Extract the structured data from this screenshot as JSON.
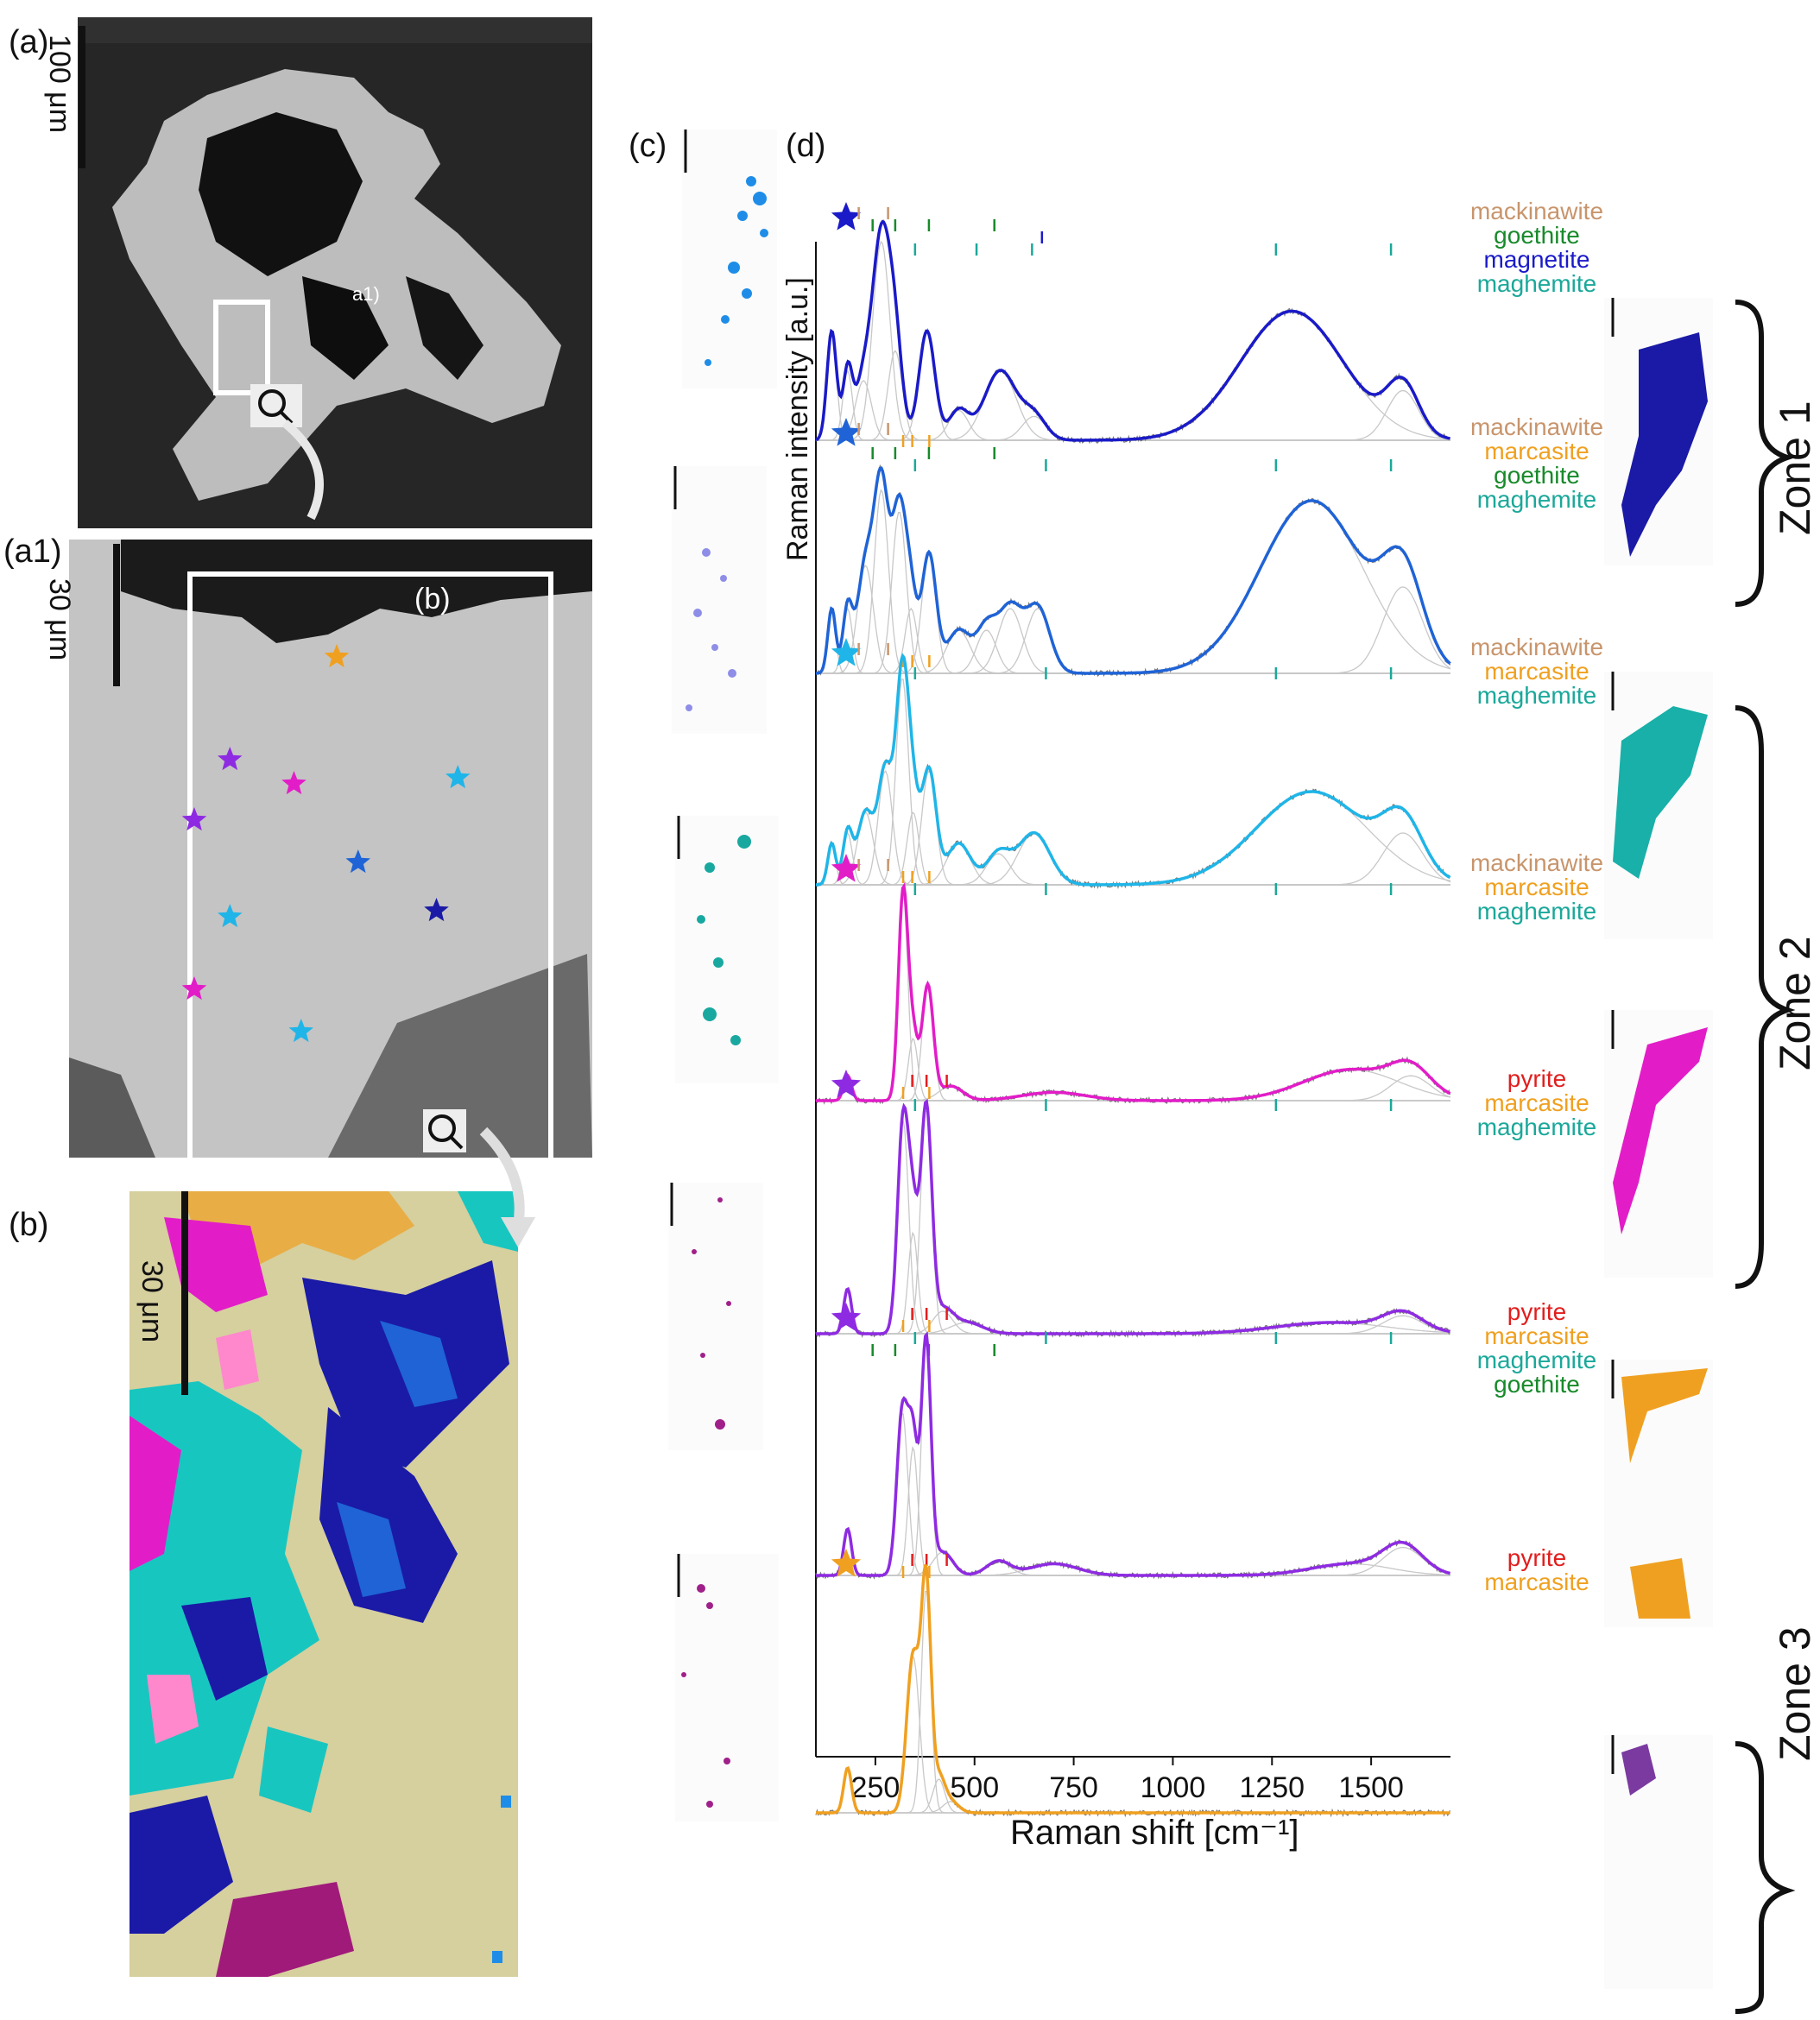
{
  "panel_labels": {
    "a": "(a)",
    "a1": "(a1)",
    "b": "(b)",
    "c": "(c)",
    "d": "(d)"
  },
  "inset_labels": {
    "a1_box": "a1)",
    "b_box": "(b)"
  },
  "scale_bars": {
    "a": "100 μm",
    "a1": "30 μm",
    "b": "30 μm"
  },
  "zones": {
    "zone1": "Zone 1",
    "zone2": "Zone 2",
    "zone3": "Zone 3"
  },
  "colors": {
    "blue_dark": "#1a1aa6",
    "blue": "#1f63d6",
    "cyan": "#1fb5e8",
    "magenta": "#e21dc8",
    "purple": "#8e2be2",
    "orange": "#f0a020",
    "teal": "#18b0a0",
    "mackinawite": "#c8956c",
    "marcasite": "#f0a020",
    "goethite": "#178a2a",
    "magnetite": "#1a1ac8",
    "maghemite": "#1aa89a",
    "pyrite": "#e21d1d",
    "fit_component": "#c8c8c8",
    "raw": "#7a7a7a"
  },
  "chart_data": {
    "type": "line",
    "xlabel": "Raman shift [cm⁻¹]",
    "ylabel": "Raman intensity [a.u.]",
    "xlim": [
      100,
      1700
    ],
    "xticks": [
      250,
      500,
      750,
      1000,
      1250,
      1500
    ],
    "xtick_labels": [
      "250",
      "500",
      "750",
      "1000",
      "1250",
      "1500"
    ],
    "grid": false,
    "series": [
      {
        "star_color": "#1a1ac8",
        "line_color": "#1a1ac8",
        "minerals": [
          {
            "name": "mackinawite",
            "color": "#c8956c",
            "positions": [
              208,
              282
            ]
          },
          {
            "name": "goethite",
            "color": "#178a2a",
            "positions": [
              243,
              300,
              385,
              550
            ]
          },
          {
            "name": "magnetite",
            "color": "#1a1ac8",
            "positions": [
              670
            ]
          },
          {
            "name": "maghemite",
            "color": "#1aa89a",
            "positions": [
              350,
              505,
              645,
              1260,
              1550
            ]
          }
        ],
        "peaks": [
          [
            140,
            0.55,
            12
          ],
          [
            180,
            0.35,
            12
          ],
          [
            220,
            0.3,
            20
          ],
          [
            265,
            1.0,
            22
          ],
          [
            300,
            0.45,
            18
          ],
          [
            380,
            0.55,
            20
          ],
          [
            460,
            0.15,
            25
          ],
          [
            565,
            0.35,
            40
          ],
          [
            650,
            0.12,
            30
          ],
          [
            1300,
            0.65,
            130
          ],
          [
            1580,
            0.25,
            40
          ]
        ]
      },
      {
        "star_color": "#1f63d6",
        "line_color": "#1f63d6",
        "minerals": [
          {
            "name": "mackinawite",
            "color": "#c8956c",
            "positions": [
              208,
              282
            ]
          },
          {
            "name": "marcasite",
            "color": "#f0a020",
            "positions": [
              320,
              343,
              386
            ]
          },
          {
            "name": "goethite",
            "color": "#178a2a",
            "positions": [
              243,
              300,
              385,
              550
            ]
          },
          {
            "name": "maghemite",
            "color": "#1aa89a",
            "positions": [
              350,
              680,
              1260,
              1550
            ]
          }
        ],
        "peaks": [
          [
            140,
            0.3,
            10
          ],
          [
            180,
            0.3,
            12
          ],
          [
            225,
            0.5,
            20
          ],
          [
            265,
            0.85,
            18
          ],
          [
            310,
            0.75,
            18
          ],
          [
            340,
            0.3,
            15
          ],
          [
            385,
            0.55,
            18
          ],
          [
            460,
            0.2,
            30
          ],
          [
            530,
            0.2,
            25
          ],
          [
            590,
            0.3,
            30
          ],
          [
            660,
            0.3,
            30
          ],
          [
            1350,
            0.8,
            130
          ],
          [
            1580,
            0.4,
            50
          ]
        ]
      },
      {
        "star_color": "#1fb5e8",
        "line_color": "#1fb5e8",
        "minerals": [
          {
            "name": "mackinawite",
            "color": "#c8956c",
            "positions": [
              208,
              282
            ]
          },
          {
            "name": "marcasite",
            "color": "#f0a020",
            "positions": [
              320,
              343,
              386
            ]
          },
          {
            "name": "maghemite",
            "color": "#1aa89a",
            "positions": [
              350,
              680,
              1260,
              1550
            ]
          }
        ],
        "peaks": [
          [
            140,
            0.2,
            10
          ],
          [
            180,
            0.25,
            12
          ],
          [
            225,
            0.35,
            20
          ],
          [
            275,
            0.55,
            18
          ],
          [
            318,
            1.0,
            16
          ],
          [
            345,
            0.35,
            15
          ],
          [
            385,
            0.55,
            18
          ],
          [
            460,
            0.2,
            30
          ],
          [
            560,
            0.15,
            30
          ],
          [
            650,
            0.25,
            40
          ],
          [
            1350,
            0.45,
            140
          ],
          [
            1580,
            0.25,
            50
          ]
        ]
      },
      {
        "star_color": "#e21dc8",
        "line_color": "#e21dc8",
        "minerals": [
          {
            "name": "mackinawite",
            "color": "#c8956c",
            "positions": [
              208,
              282
            ]
          },
          {
            "name": "marcasite",
            "color": "#f0a020",
            "positions": [
              320,
              343,
              386
            ]
          },
          {
            "name": "maghemite",
            "color": "#1aa89a",
            "positions": [
              350,
              680,
              1260,
              1550
            ]
          }
        ],
        "peaks": [
          [
            180,
            0.12,
            10
          ],
          [
            320,
            1.0,
            12
          ],
          [
            345,
            0.3,
            12
          ],
          [
            382,
            0.55,
            14
          ],
          [
            440,
            0.07,
            30
          ],
          [
            700,
            0.04,
            80
          ],
          [
            1450,
            0.15,
            120
          ],
          [
            1600,
            0.12,
            50
          ]
        ]
      },
      {
        "star_color": "#8e2be2",
        "line_color": "#8e2be2",
        "minerals": [
          {
            "name": "pyrite",
            "color": "#e21d1d",
            "positions": [
              343,
              379,
              430
            ]
          },
          {
            "name": "marcasite",
            "color": "#f0a020",
            "positions": [
              320,
              386
            ]
          },
          {
            "name": "maghemite",
            "color": "#1aa89a",
            "positions": [
              350,
              680,
              1260,
              1550
            ]
          }
        ],
        "peaks": [
          [
            180,
            0.2,
            10
          ],
          [
            320,
            0.95,
            14
          ],
          [
            345,
            0.45,
            12
          ],
          [
            378,
            1.0,
            14
          ],
          [
            420,
            0.1,
            25
          ],
          [
            480,
            0.05,
            40
          ],
          [
            1400,
            0.05,
            140
          ],
          [
            1580,
            0.08,
            50
          ]
        ]
      },
      {
        "star_color": "#8e2be2",
        "line_color": "#8e2be2",
        "minerals": [
          {
            "name": "pyrite",
            "color": "#e21d1d",
            "positions": [
              343,
              379,
              430
            ]
          },
          {
            "name": "marcasite",
            "color": "#f0a020",
            "positions": [
              320,
              386
            ]
          },
          {
            "name": "maghemite",
            "color": "#1aa89a",
            "positions": [
              350,
              680,
              1260,
              1550
            ]
          },
          {
            "name": "goethite",
            "color": "#178a2a",
            "positions": [
              243,
              300,
              385,
              550
            ]
          }
        ],
        "peaks": [
          [
            180,
            0.2,
            10
          ],
          [
            318,
            0.7,
            14
          ],
          [
            345,
            0.55,
            12
          ],
          [
            378,
            1.0,
            12
          ],
          [
            420,
            0.1,
            25
          ],
          [
            560,
            0.06,
            30
          ],
          [
            700,
            0.05,
            60
          ],
          [
            1450,
            0.05,
            100
          ],
          [
            1580,
            0.12,
            50
          ]
        ]
      },
      {
        "star_color": "#f0a020",
        "line_color": "#f0a020",
        "minerals": [
          {
            "name": "pyrite",
            "color": "#e21d1d",
            "positions": [
              343,
              379,
              430
            ]
          },
          {
            "name": "marcasite",
            "color": "#f0a020",
            "positions": [
              320,
              386
            ]
          }
        ],
        "peaks": [
          [
            180,
            0.2,
            10
          ],
          [
            345,
            0.7,
            16
          ],
          [
            378,
            1.0,
            12
          ],
          [
            410,
            0.15,
            15
          ],
          [
            440,
            0.05,
            20
          ]
        ]
      }
    ]
  }
}
